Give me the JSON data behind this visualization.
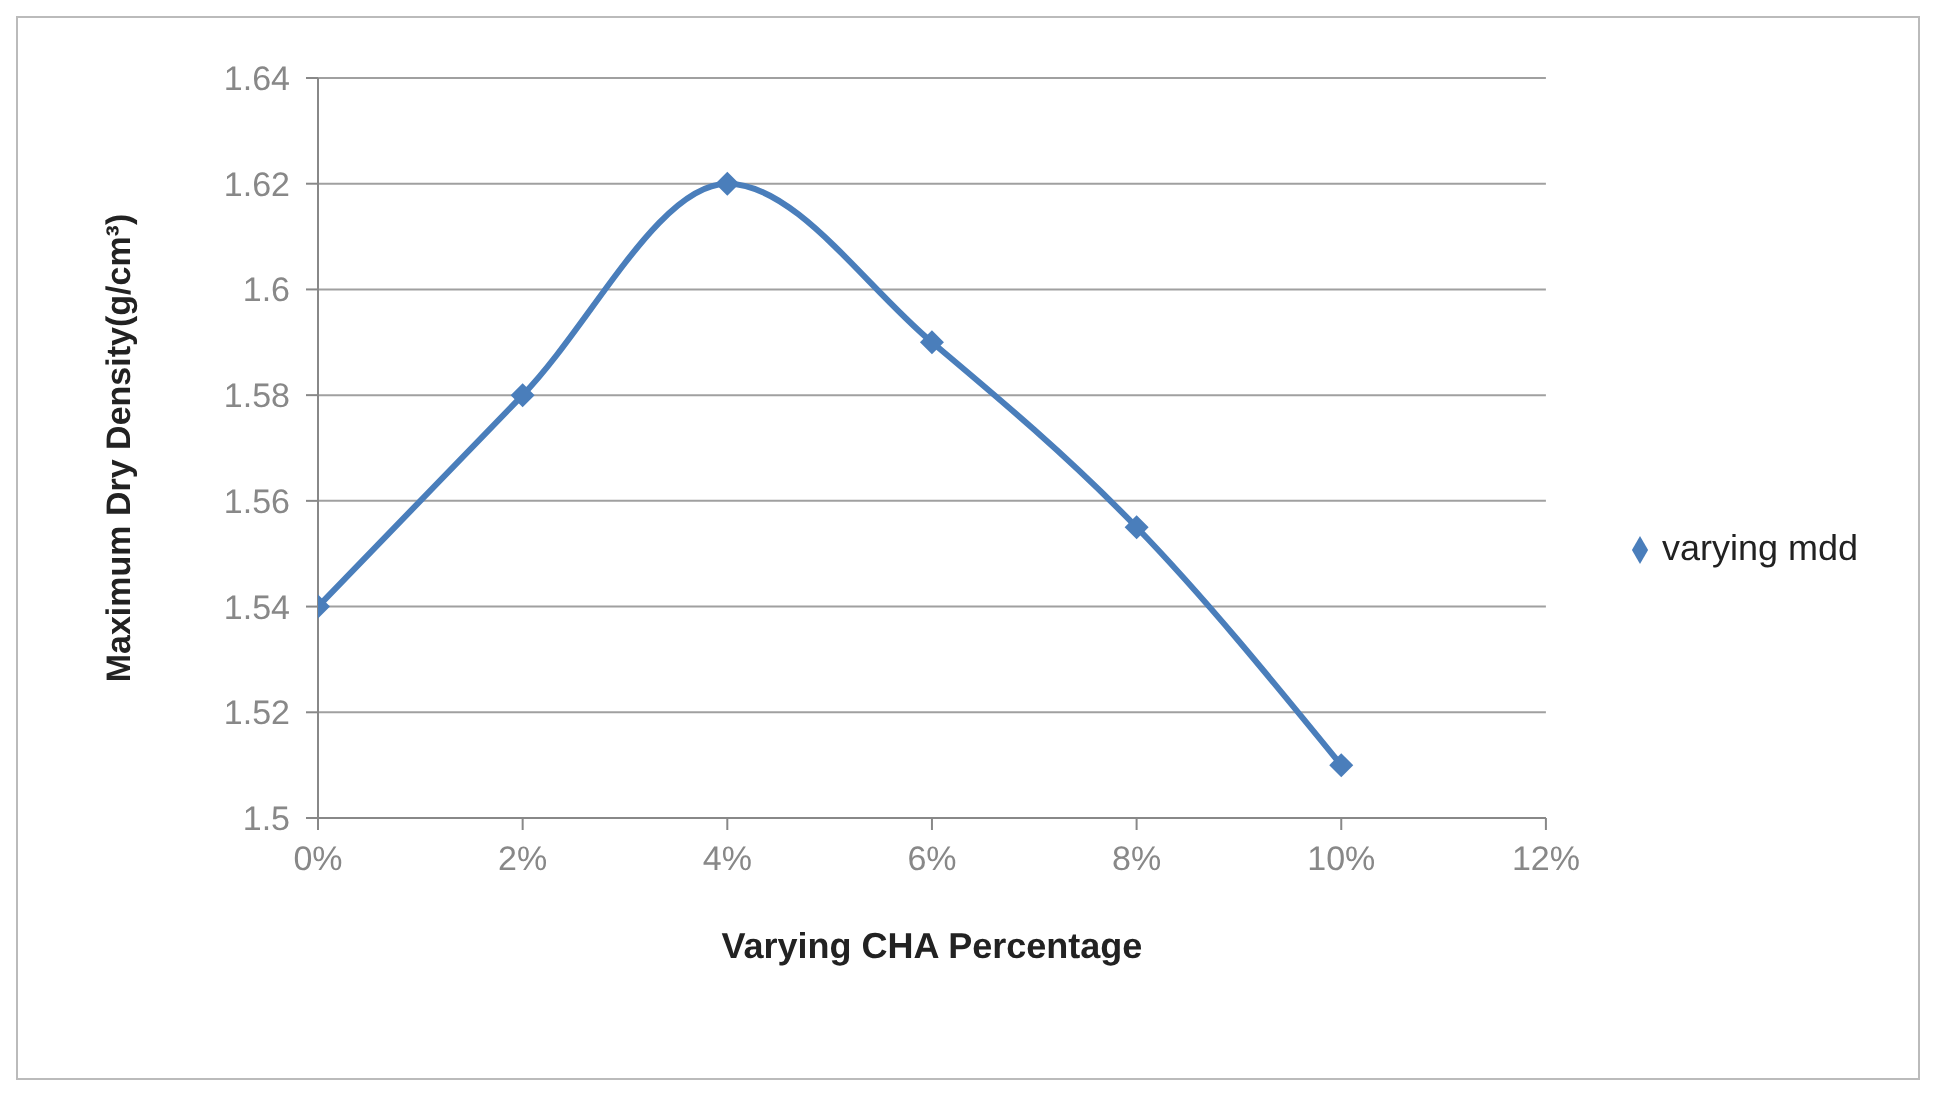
{
  "chart_data": {
    "type": "line",
    "xlabel": "Varying CHA Percentage",
    "ylabel": "Maximum Dry Density(g/cm³)",
    "x": [
      0,
      2,
      4,
      6,
      8,
      10
    ],
    "series": [
      {
        "name": "varying mdd",
        "color": "#4a7ebb",
        "values": [
          1.54,
          1.58,
          1.62,
          1.59,
          1.555,
          1.51
        ]
      }
    ],
    "xlim": [
      0,
      12
    ],
    "xticks": [
      {
        "value": 0,
        "label": "0%"
      },
      {
        "value": 2,
        "label": "2%"
      },
      {
        "value": 4,
        "label": "4%"
      },
      {
        "value": 6,
        "label": "6%"
      },
      {
        "value": 8,
        "label": "8%"
      },
      {
        "value": 10,
        "label": "10%"
      },
      {
        "value": 12,
        "label": "12%"
      }
    ],
    "ylim": [
      1.5,
      1.64
    ],
    "yticks": [
      1.5,
      1.52,
      1.54,
      1.56,
      1.58,
      1.6,
      1.62,
      1.64
    ],
    "grid": "y",
    "legend": "right",
    "marker": "diamond",
    "line_style": "solid"
  }
}
